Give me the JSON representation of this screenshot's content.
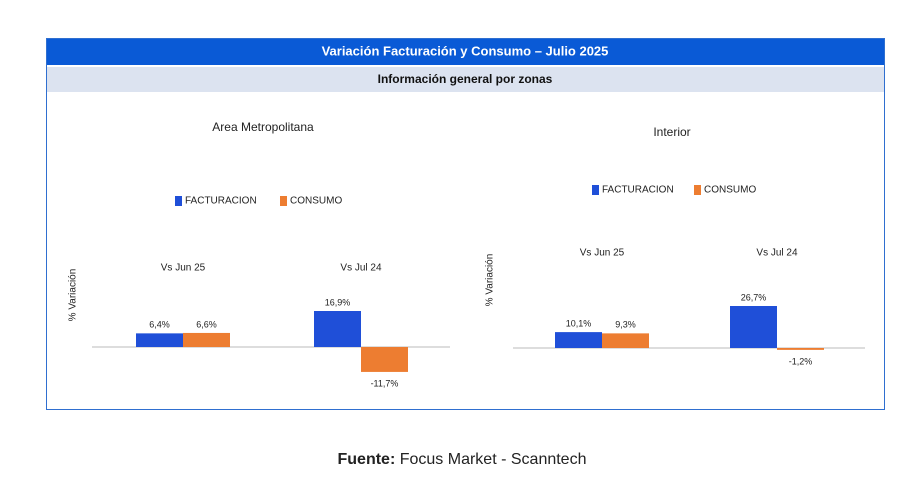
{
  "header": {
    "title": "Variación Facturación y Consumo – Julio 2025",
    "subtitle": "Información general por zonas"
  },
  "chart_data": [
    {
      "type": "bar",
      "title": "Area Metropolitana",
      "y_label": "% Variación",
      "categories": [
        "Vs Jun 25",
        "Vs Jul 24"
      ],
      "series": [
        {
          "name": "FACTURACION",
          "color": "#1f4fd8",
          "values": [
            6.4,
            16.9
          ],
          "value_labels": [
            "6,4%",
            "16,9%"
          ]
        },
        {
          "name": "CONSUMO",
          "color": "#ed7d31",
          "values": [
            6.6,
            -11.7
          ],
          "value_labels": [
            "6,6%",
            "-11,7%"
          ]
        }
      ]
    },
    {
      "type": "bar",
      "title": "Interior",
      "y_label": "% Variación",
      "categories": [
        "Vs Jun 25",
        "Vs Jul 24"
      ],
      "series": [
        {
          "name": "FACTURACION",
          "color": "#1f4fd8",
          "values": [
            10.1,
            26.7
          ],
          "value_labels": [
            "10,1%",
            "26,7%"
          ]
        },
        {
          "name": "CONSUMO",
          "color": "#ed7d31",
          "values": [
            9.3,
            -1.2
          ],
          "value_labels": [
            "9,3%",
            "-1,2%"
          ]
        }
      ]
    }
  ],
  "source": {
    "label": "Fuente:",
    "text": "Focus Market - Scanntech"
  }
}
